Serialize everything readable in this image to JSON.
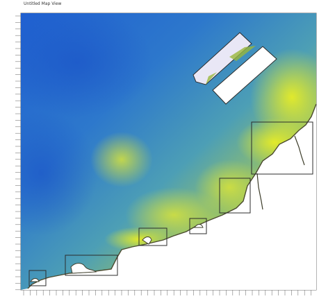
{
  "window": {
    "title": "Untitled Map View"
  },
  "colors": {
    "deep_water": "#1f63d6",
    "mid_water": "#4c9fb0",
    "shallow_water": "#c6d43a",
    "very_shallow": "#e8ee24",
    "land": "#ffffff",
    "coast_outline": "#4a4a2e",
    "frame_line": "#6a6a6a",
    "platform_fill": "#e9e7f6",
    "platform_accent": "#9ab83c",
    "zoom_box": "#2b2b2b"
  },
  "map": {
    "layers": [
      "bathymetry-raster",
      "coastline",
      "harbour-structure",
      "detail-frames"
    ],
    "detail_frames": [
      {
        "id": "frame-1",
        "label": ""
      },
      {
        "id": "frame-2",
        "label": ""
      },
      {
        "id": "frame-3",
        "label": ""
      },
      {
        "id": "frame-4",
        "label": ""
      },
      {
        "id": "frame-5",
        "label": ""
      },
      {
        "id": "frame-6",
        "label": ""
      }
    ]
  }
}
